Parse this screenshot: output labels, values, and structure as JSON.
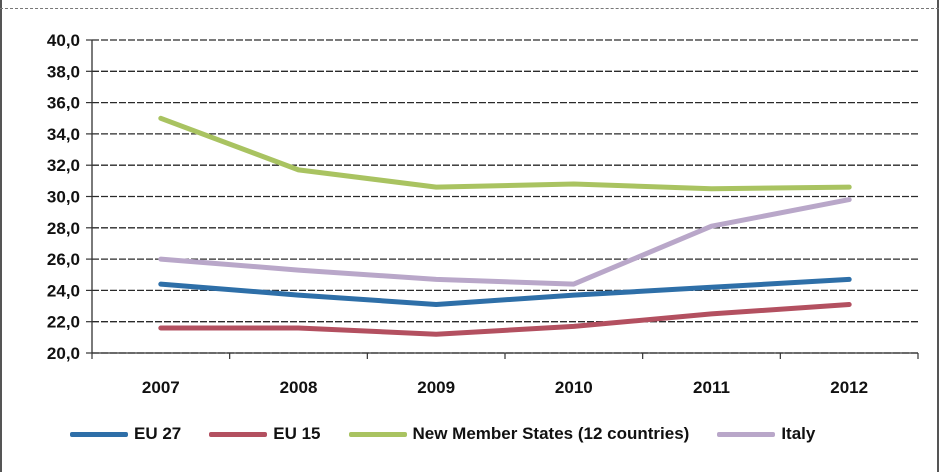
{
  "chart_data": {
    "type": "line",
    "title": "",
    "xlabel": "",
    "ylabel": "",
    "x": [
      "2007",
      "2008",
      "2009",
      "2010",
      "2011",
      "2012"
    ],
    "ylim": [
      20,
      40
    ],
    "yticks": [
      "40,0",
      "38,0",
      "36,0",
      "34,0",
      "32,0",
      "30,0",
      "28,0",
      "26,0",
      "24,0",
      "22,0",
      "20,0"
    ],
    "grid": true,
    "legend_position": "bottom",
    "series": [
      {
        "name": "EU 27",
        "color": "#2e6fa8",
        "values": [
          24.4,
          23.7,
          23.1,
          23.7,
          24.2,
          24.7
        ]
      },
      {
        "name": "EU 15",
        "color": "#b35060",
        "values": [
          21.6,
          21.6,
          21.2,
          21.7,
          22.5,
          23.1
        ]
      },
      {
        "name": "New Member States (12 countries)",
        "color": "#a9c361",
        "values": [
          35.0,
          31.7,
          30.6,
          30.8,
          30.5,
          30.6
        ]
      },
      {
        "name": "Italy",
        "color": "#b9a7c9",
        "values": [
          26.0,
          25.3,
          24.7,
          24.4,
          28.1,
          29.8
        ]
      }
    ]
  }
}
